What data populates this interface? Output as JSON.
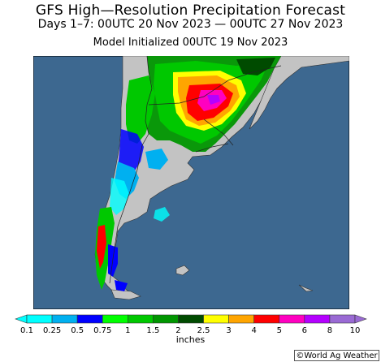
{
  "header": {
    "title": "GFS High—Resolution Precipitation Forecast",
    "period": "Days 1–7: 00UTC 20 Nov 2023 — 00UTC 27 Nov 2023",
    "init": "Model Initialized 00UTC 19 Nov 2023"
  },
  "map": {
    "credit": "©World Ag Weather",
    "ocean_color": "#3d6890",
    "land_color": "#c3c3c3"
  },
  "legend": {
    "units": "inches",
    "labels": [
      "0.1",
      "0.25",
      "0.5",
      "0.75",
      "1",
      "1.5",
      "2",
      "2.5",
      "3",
      "4",
      "5",
      "6",
      "8",
      "10"
    ],
    "colors": [
      "#00ffff",
      "#00b0f0",
      "#0000ff",
      "#00ff00",
      "#00c800",
      "#009600",
      "#004b00",
      "#ffff00",
      "#ffa500",
      "#ff0000",
      "#ff00c0",
      "#b400ff",
      "#9a6ad4"
    ]
  }
}
